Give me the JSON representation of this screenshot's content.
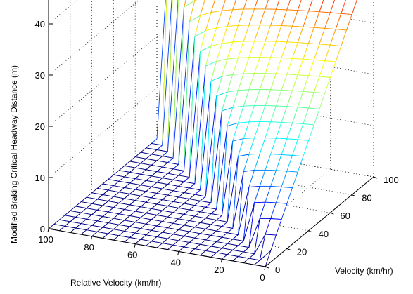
{
  "chart_data": {
    "type": "surface",
    "title": "",
    "xlabel": "Velocity (km/hr)",
    "ylabel": "Relative Velocity (km/hr)",
    "zlabel": "Modified Braking Critical Headway Distance (m)",
    "xlim": [
      0,
      100
    ],
    "ylim": [
      0,
      100
    ],
    "zlim": [
      0,
      40
    ],
    "x_ticks": [
      "0",
      "20",
      "40",
      "60",
      "80",
      "100"
    ],
    "y_ticks": [
      "0",
      "20",
      "40",
      "60",
      "80",
      "100"
    ],
    "z_ticks": [
      "0",
      "10",
      "20",
      "30",
      "40"
    ],
    "grid": true,
    "colormap": "jet",
    "mesh_step": 5,
    "surface_rule": "distance = 0 where Relative Velocity >= Velocity; otherwise rises from 0 at the diagonal to the value at Relative Velocity 0, which increases from 0 at Velocity 0 to about 44 m at Velocity 100",
    "sample_points": [
      {
        "velocity": 0,
        "relative_velocity": 0,
        "distance": 0
      },
      {
        "velocity": 20,
        "relative_velocity": 0,
        "distance": 9
      },
      {
        "velocity": 40,
        "relative_velocity": 0,
        "distance": 17
      },
      {
        "velocity": 60,
        "relative_velocity": 0,
        "distance": 26
      },
      {
        "velocity": 80,
        "relative_velocity": 0,
        "distance": 35
      },
      {
        "velocity": 100,
        "relative_velocity": 0,
        "distance": 44
      },
      {
        "velocity": 100,
        "relative_velocity": 80,
        "distance": 36
      },
      {
        "velocity": 100,
        "relative_velocity": 100,
        "distance": 0
      },
      {
        "velocity": 50,
        "relative_velocity": 60,
        "distance": 0
      }
    ]
  }
}
